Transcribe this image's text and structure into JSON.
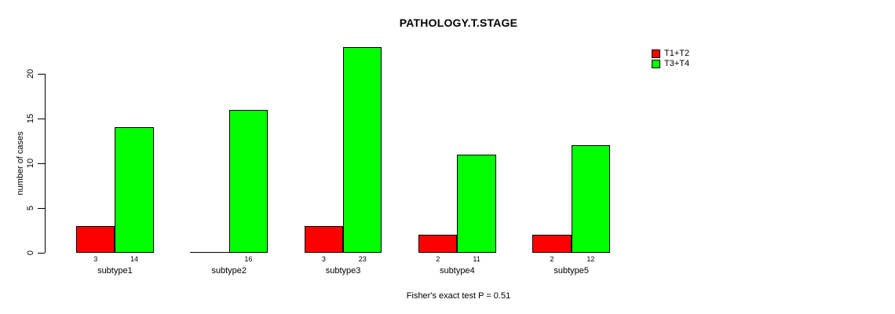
{
  "chart_data": {
    "type": "bar",
    "title": "PATHOLOGY.T.STAGE",
    "ylabel": "number of cases",
    "xlabel": "",
    "categories": [
      "subtype1",
      "subtype2",
      "subtype3",
      "subtype4",
      "subtype5"
    ],
    "series": [
      {
        "name": "T1+T2",
        "color": "#ff0000",
        "values": [
          3,
          0,
          3,
          2,
          2
        ]
      },
      {
        "name": "T3+T4",
        "color": "#00ff00",
        "values": [
          14,
          16,
          23,
          11,
          12
        ]
      }
    ],
    "bar_value_labels": [
      [
        "3",
        "",
        "3",
        "2",
        "2"
      ],
      [
        "14",
        "16",
        "23",
        "11",
        "12"
      ]
    ],
    "yticks": [
      0,
      5,
      10,
      15,
      20
    ],
    "ylim": [
      0,
      23
    ],
    "grid": false,
    "legend": {
      "position": "top-right",
      "entries": [
        {
          "label": "T1+T2",
          "color": "#ff0000"
        },
        {
          "label": "T3+T4",
          "color": "#00ff00"
        }
      ]
    },
    "annotation": "Fisher's exact test P = 0.51"
  }
}
